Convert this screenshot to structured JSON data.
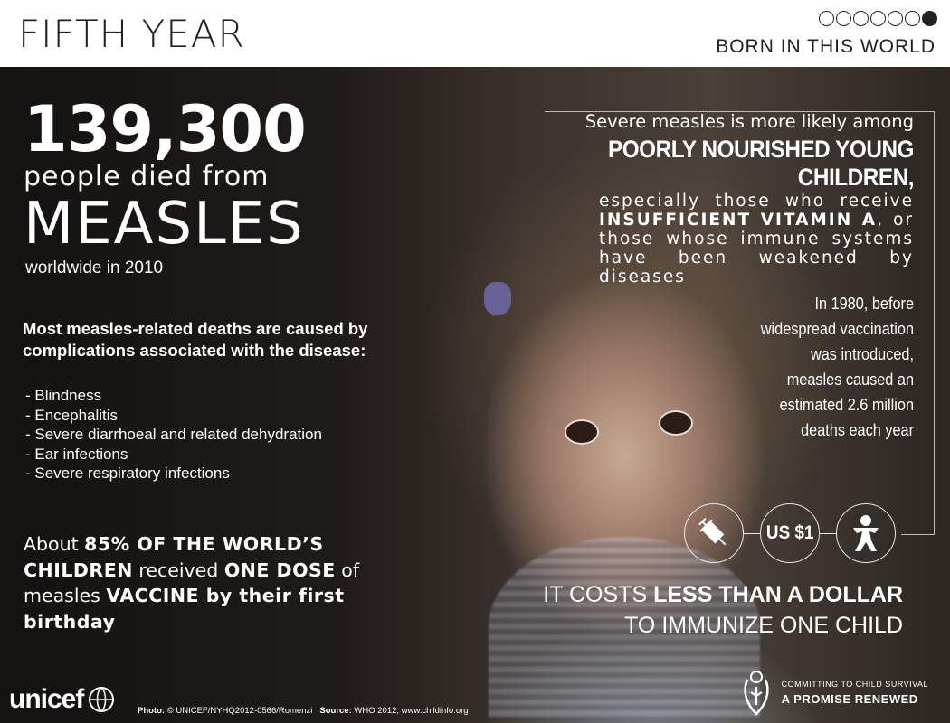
{
  "header": {
    "title": "FIFTH YEAR",
    "subtitle": "BORN IN THIS WORLD",
    "progress": {
      "total": 7,
      "current": 7
    }
  },
  "main": {
    "deaths_number": "139,300",
    "deaths_text": "people died from",
    "disease": "MEASLES",
    "year_text": "worldwide in 2010"
  },
  "causes": {
    "intro": "Most measles-related deaths are caused by complications associated with the disease:",
    "items": [
      "- Blindness",
      "- Encephalitis",
      "- Severe diarrhoeal and related dehydration",
      "- Ear infections",
      "- Severe respiratory infections"
    ]
  },
  "vaccine": {
    "p1": "About ",
    "b1": "85% OF THE WORLD’S CHILDREN",
    "p2": " received ",
    "b2": "ONE DOSE",
    "p3": " of measles ",
    "b3": "VACCINE by their first birthday"
  },
  "risk": {
    "line1": "Severe measles is more likely among",
    "line2": "POORLY NOURISHED YOUNG CHILDREN,",
    "p1": "especially those who receive ",
    "b1": "INSUFFICIENT VITAMIN A",
    "p2": ", or those whose immune systems have been weakened by diseases"
  },
  "history": "In 1980, before widespread vaccination was introduced, measles caused an estimated 2.6 million deaths each year",
  "cost": {
    "price": "US $1",
    "p1": "IT COSTS ",
    "b1": "LESS THAN A DOLLAR",
    "line2": "TO IMMUNIZE ONE CHILD"
  },
  "footer": {
    "logo": "unicef",
    "photo_label": "Photo:",
    "photo_credit": "© UNICEF/NYHQ2012-0566/Romenzi",
    "source_label": "Source:",
    "source_text": "WHO 2012,  www.childinfo.org",
    "promise_line1": "COMMITTING TO CHILD SURVIVAL",
    "promise_line2": "A PROMISE RENEWED"
  },
  "icons": [
    "syringe-icon",
    "child-icon",
    "unicef-globe-icon",
    "promise-renewed-icon"
  ]
}
